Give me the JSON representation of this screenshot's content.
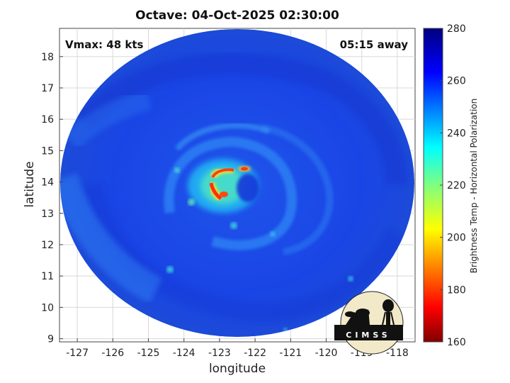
{
  "title": "Octave: 04-Oct-2025 02:30:00",
  "xlabel": "longitude",
  "ylabel": "latitude",
  "vmax_label": "Vmax: 48 kts",
  "distance_label": "05:15 away",
  "colorbar": {
    "label": "Brightness Temp - Horizontal Polarization",
    "min": 160,
    "max": 280,
    "ticks": [
      "280",
      "260",
      "240",
      "220",
      "200",
      "180",
      "160"
    ]
  },
  "logo_text": "CIMSS",
  "chart_data": {
    "type": "heatmap",
    "title": "Octave: 04-Oct-2025 02:30:00",
    "xlabel": "longitude",
    "ylabel": "latitude",
    "xlim": [
      -127.5,
      -117.5
    ],
    "ylim": [
      8.9,
      18.9
    ],
    "xticks": [
      "-127",
      "-126",
      "-125",
      "-124",
      "-123",
      "-122",
      "-121",
      "-120",
      "-119",
      "-118"
    ],
    "yticks": [
      "9",
      "10",
      "11",
      "12",
      "13",
      "14",
      "15",
      "16",
      "17",
      "18"
    ],
    "grid": true,
    "colorbar_range": [
      160,
      280
    ],
    "storm_center": {
      "lon": -122.6,
      "lat": 14.1
    },
    "background_temp": 262,
    "features": [
      {
        "name": "eyewall convection",
        "lon": -122.8,
        "lat": 14.3,
        "min_temp": 190
      },
      {
        "name": "warm eye",
        "lon": -122.2,
        "lat": 14.0,
        "temp": 265
      },
      {
        "name": "spiral band",
        "temp": 248
      }
    ]
  }
}
